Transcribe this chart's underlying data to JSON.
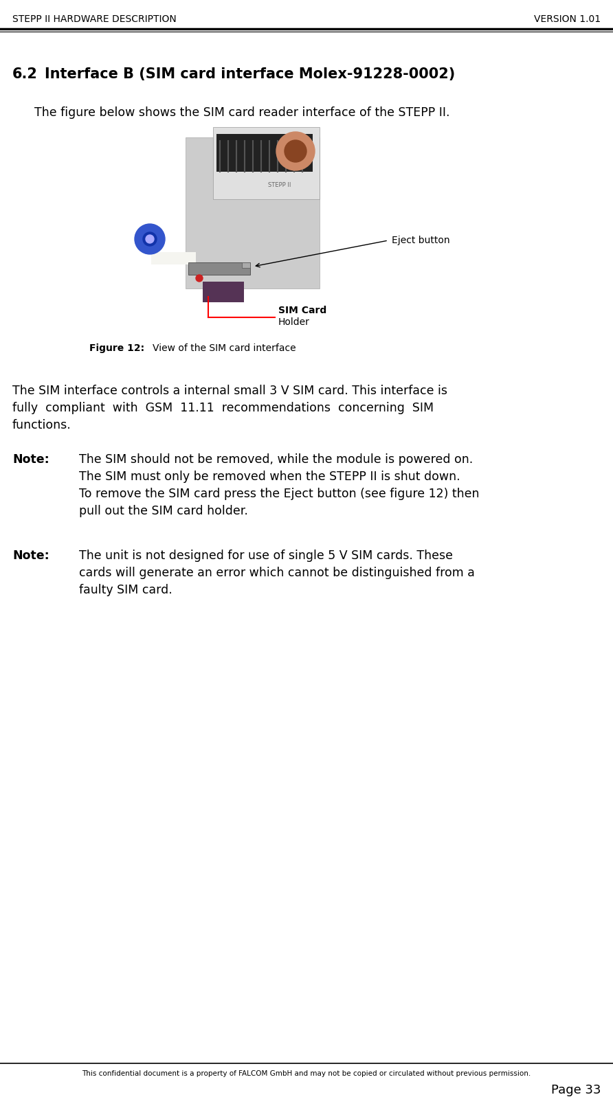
{
  "header_left": "STEPP II HARDWARE DESCRIPTION",
  "header_right": "VERSION 1.01",
  "section_num": "6.2",
  "section_title": "Interface B (SIM card interface Molex-91228-0002)",
  "intro_text": "The figure below shows the SIM card reader interface of the STEPP II.",
  "figure_caption_bold": "Figure 12:",
  "figure_caption_normal": "  View of the SIM card interface",
  "body_line1": "The SIM interface controls a internal small 3 V SIM card. This interface is",
  "body_line2": "fully  compliant  with  GSM  11.11  recommendations  concerning  SIM",
  "body_line3": "functions.",
  "note1_label": "Note:",
  "note1_lines": [
    "The SIM should not be removed, while the module is powered on.",
    "The SIM must only be removed when the STEPP II is shut down.",
    "To remove the SIM card press the Eject button (see figure 12) then",
    "pull out the SIM card holder."
  ],
  "note2_label": "Note:",
  "note2_lines": [
    "The unit is not designed for use of single 5 V SIM cards. These",
    "cards will generate an error which cannot be distinguished from a",
    "faulty SIM card."
  ],
  "footer_text": "This confidential document is a property of FALCOM GmbH and may not be copied or circulated without previous permission.",
  "footer_page": "Page 33",
  "bg_color": "#ffffff",
  "text_color": "#000000",
  "eject_label": "Eject button",
  "sim_label_line1": "SIM Card",
  "sim_label_line2": "Holder"
}
